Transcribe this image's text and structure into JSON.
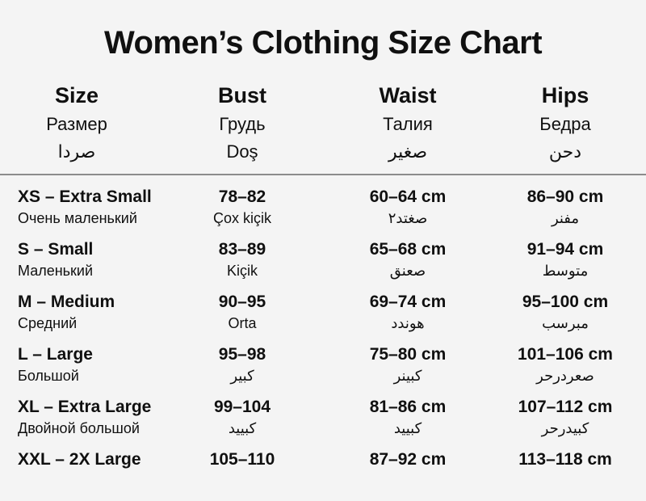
{
  "title": "Women’s Clothing Size Chart",
  "colors": {
    "background": "#f4f4f4",
    "text": "#101010",
    "divider": "#8c8c8c"
  },
  "chart_data": {
    "type": "table",
    "title": "Women’s Clothing Size Chart",
    "columns": [
      {
        "en": "Size",
        "ru": "Размер",
        "loc": "صردا"
      },
      {
        "en": "Bust",
        "ru": "Грудь",
        "loc": "Doş"
      },
      {
        "en": "Waist",
        "ru": "Талия",
        "loc": "صغير"
      },
      {
        "en": "Hips",
        "ru": "Бедра",
        "loc": "دحن"
      }
    ],
    "rows": [
      {
        "size": "XS – Extra Small",
        "size_sub": "Очень маленький",
        "bust": "78–82",
        "bust_sub": "Çox kiçik",
        "waist": "60–64 cm",
        "waist_sub": "صغتد٢",
        "hips": "86–90 cm",
        "hips_sub": "مفنر"
      },
      {
        "size": "S – Small",
        "size_sub": "Маленький",
        "bust": "83–89",
        "bust_sub": "Kiçik",
        "waist": "65–68 cm",
        "waist_sub": "صعنق",
        "hips": "91–94 cm",
        "hips_sub": "متوسط"
      },
      {
        "size": "M – Medium",
        "size_sub": "Средний",
        "bust": "90–95",
        "bust_sub": "Orta",
        "waist": "69–74 cm",
        "waist_sub": "هوندد",
        "hips": "95–100 cm",
        "hips_sub": "مبرسب"
      },
      {
        "size": "L – Large",
        "size_sub": "Большой",
        "bust": "95–98",
        "bust_sub": "كبير",
        "waist": "75–80 cm",
        "waist_sub": "كبينر",
        "hips": "101–106 cm",
        "hips_sub": "صعردرحر"
      },
      {
        "size": "XL – Extra Large",
        "size_sub": "Двойной большой",
        "bust": "99–104",
        "bust_sub": "كبييد",
        "waist": "81–86 cm",
        "waist_sub": "كبييد",
        "hips": "107–112 cm",
        "hips_sub": "كبيدرحر"
      },
      {
        "size": "XXL – 2X Large",
        "size_sub": "",
        "bust": "105–110",
        "bust_sub": "",
        "waist": "87–92 cm",
        "waist_sub": "",
        "hips": "113–118 cm",
        "hips_sub": ""
      }
    ]
  }
}
